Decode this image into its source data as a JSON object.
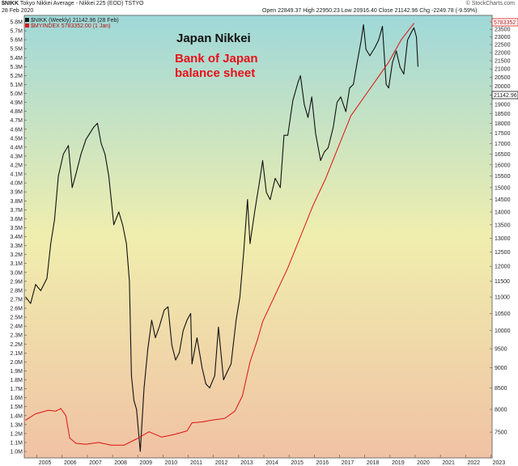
{
  "header": {
    "ticker": "$NIKK",
    "description": "Tokyo Nikkei Average - Nikkei 225 (EOD)  TSTYO",
    "date": "28 Feb 2020",
    "open_label": "Open",
    "open": "22849.37",
    "high_label": "High",
    "high": "22950.23",
    "low_label": "Low",
    "low": "20916.40",
    "close_label": "Close",
    "close": "21142.96",
    "chg_label": "Chg",
    "chg": "-2249.78 (-9.59%)",
    "credit": "© StockCharts.com"
  },
  "legend": {
    "series1": "$NIKK (Weekly) 21142.96 (28 Feb)",
    "series2": "$MYINDEX 5783352.00 (1 Jan)"
  },
  "annotations": {
    "nikkei": "Japan Nikkei",
    "boj_line1": "Bank of Japan",
    "boj_line2": "balance sheet"
  },
  "colors": {
    "nikkei": "#111111",
    "boj": "#dd1111",
    "boj_label": "#e8101a",
    "bg_top": "#9fd8d8",
    "bg_mid": "#f0eeae",
    "bg_bottom": "#f0c2a4"
  },
  "chart_data": {
    "type": "line",
    "x_axis_ticks": [
      "2005",
      "2006",
      "2007",
      "2008",
      "2009",
      "2010",
      "2011",
      "2012",
      "2013",
      "2014",
      "2015",
      "2016",
      "2017",
      "2018",
      "2019",
      "2020",
      "2021",
      "2022",
      "2023"
    ],
    "left_axis": {
      "ticks": [
        "1.0M",
        "1.1M",
        "1.2M",
        "1.3M",
        "1.4M",
        "1.5M",
        "1.6M",
        "1.7M",
        "1.8M",
        "1.9M",
        "2.0M",
        "2.1M",
        "2.2M",
        "2.3M",
        "2.4M",
        "2.5M",
        "2.6M",
        "2.7M",
        "2.8M",
        "2.9M",
        "3.0M",
        "3.1M",
        "3.2M",
        "3.3M",
        "3.4M",
        "3.5M",
        "3.6M",
        "3.7M",
        "3.8M",
        "3.9M",
        "4.0M",
        "4.1M",
        "4.2M",
        "4.3M",
        "4.4M",
        "4.5M",
        "4.6M",
        "4.7M",
        "4.8M",
        "4.9M",
        "5.0M",
        "5.1M",
        "5.2M",
        "5.3M",
        "5.4M",
        "5.5M",
        "5.6M",
        "5.7M",
        "5.8M"
      ],
      "range": [
        1000000,
        5800000
      ]
    },
    "right_axis": {
      "ticks": [
        "7500",
        "8000",
        "8500",
        "9000",
        "9500",
        "10000",
        "10500",
        "11000",
        "11500",
        "12000",
        "12500",
        "13000",
        "13500",
        "14000",
        "14500",
        "15000",
        "15500",
        "16000",
        "16500",
        "17000",
        "17500",
        "18000",
        "18500",
        "19000",
        "19500",
        "20000",
        "20500",
        "21000",
        "21500",
        "22000",
        "22500",
        "23000",
        "23500",
        "24000"
      ],
      "range": [
        7100,
        24000
      ],
      "scale": "log",
      "last_value_label": "21142.96",
      "boj_value_label": "5783352"
    },
    "series": [
      {
        "name": "$NIKK (Weekly)",
        "axis": "right",
        "x": [
          2004.6,
          2004.8,
          2005.0,
          2005.2,
          2005.45,
          2005.6,
          2005.75,
          2005.9,
          2006.1,
          2006.3,
          2006.45,
          2006.6,
          2006.8,
          2007.0,
          2007.15,
          2007.3,
          2007.45,
          2007.6,
          2007.75,
          2007.9,
          2008.1,
          2008.3,
          2008.45,
          2008.6,
          2008.72,
          2008.8,
          2008.9,
          2009.0,
          2009.15,
          2009.3,
          2009.45,
          2009.6,
          2009.75,
          2009.9,
          2010.1,
          2010.25,
          2010.4,
          2010.55,
          2010.7,
          2010.85,
          2011.0,
          2011.15,
          2011.2,
          2011.4,
          2011.6,
          2011.75,
          2011.9,
          2012.1,
          2012.25,
          2012.45,
          2012.6,
          2012.75,
          2012.95,
          2013.1,
          2013.25,
          2013.4,
          2013.5,
          2013.7,
          2013.9,
          2014.0,
          2014.15,
          2014.3,
          2014.5,
          2014.7,
          2014.85,
          2015.0,
          2015.2,
          2015.4,
          2015.5,
          2015.65,
          2015.8,
          2015.95,
          2016.1,
          2016.3,
          2016.45,
          2016.6,
          2016.8,
          2016.95,
          2017.1,
          2017.3,
          2017.45,
          2017.6,
          2017.75,
          2017.9,
          2018.0,
          2018.1,
          2018.25,
          2018.45,
          2018.6,
          2018.75,
          2018.9,
          2019.0,
          2019.15,
          2019.3,
          2019.45,
          2019.6,
          2019.75,
          2019.9,
          2020.0,
          2020.1,
          2020.16
        ],
        "values": [
          11000,
          10800,
          11400,
          11200,
          11600,
          12800,
          13700,
          15500,
          16500,
          16900,
          15000,
          15600,
          16500,
          17200,
          17500,
          17800,
          18000,
          17000,
          16500,
          15500,
          13500,
          14000,
          13500,
          12800,
          11500,
          8800,
          8200,
          8000,
          7100,
          8500,
          9500,
          10300,
          9800,
          10100,
          10600,
          10700,
          9600,
          9200,
          9400,
          10000,
          10300,
          10500,
          9100,
          9800,
          9000,
          8600,
          8500,
          8800,
          10100,
          8700,
          8900,
          9100,
          10300,
          11000,
          12500,
          14500,
          12800,
          14100,
          15400,
          16200,
          14800,
          14500,
          15400,
          15000,
          17400,
          17400,
          19200,
          20200,
          20600,
          19000,
          18300,
          19400,
          17500,
          16200,
          16600,
          16800,
          17800,
          19100,
          19400,
          18600,
          19900,
          20100,
          21400,
          22700,
          23800,
          22200,
          21800,
          22300,
          22800,
          23700,
          20100,
          19900,
          21400,
          22100,
          21100,
          20700,
          22800,
          23300,
          23600,
          23000,
          21142.96
        ]
      },
      {
        "name": "$MYINDEX",
        "axis": "left",
        "x": [
          2004.6,
          2005.0,
          2005.5,
          2005.8,
          2006.0,
          2006.2,
          2006.35,
          2006.6,
          2007.0,
          2007.5,
          2008.0,
          2008.5,
          2009.0,
          2009.5,
          2010.0,
          2010.5,
          2011.0,
          2011.2,
          2011.6,
          2012.0,
          2012.5,
          2012.9,
          2013.2,
          2013.5,
          2013.8,
          2014.0,
          2014.5,
          2015.0,
          2015.5,
          2016.0,
          2016.5,
          2017.0,
          2017.5,
          2018.0,
          2018.5,
          2019.0,
          2019.5,
          2020.0
        ],
        "values": [
          1350000,
          1420000,
          1460000,
          1450000,
          1480000,
          1400000,
          1150000,
          1090000,
          1080000,
          1100000,
          1070000,
          1070000,
          1140000,
          1220000,
          1160000,
          1190000,
          1230000,
          1320000,
          1330000,
          1350000,
          1370000,
          1450000,
          1620000,
          2000000,
          2250000,
          2450000,
          2750000,
          3050000,
          3400000,
          3750000,
          4050000,
          4400000,
          4750000,
          4950000,
          5150000,
          5350000,
          5600000,
          5783352
        ]
      }
    ],
    "grid": false,
    "legend_position": "top-left"
  }
}
